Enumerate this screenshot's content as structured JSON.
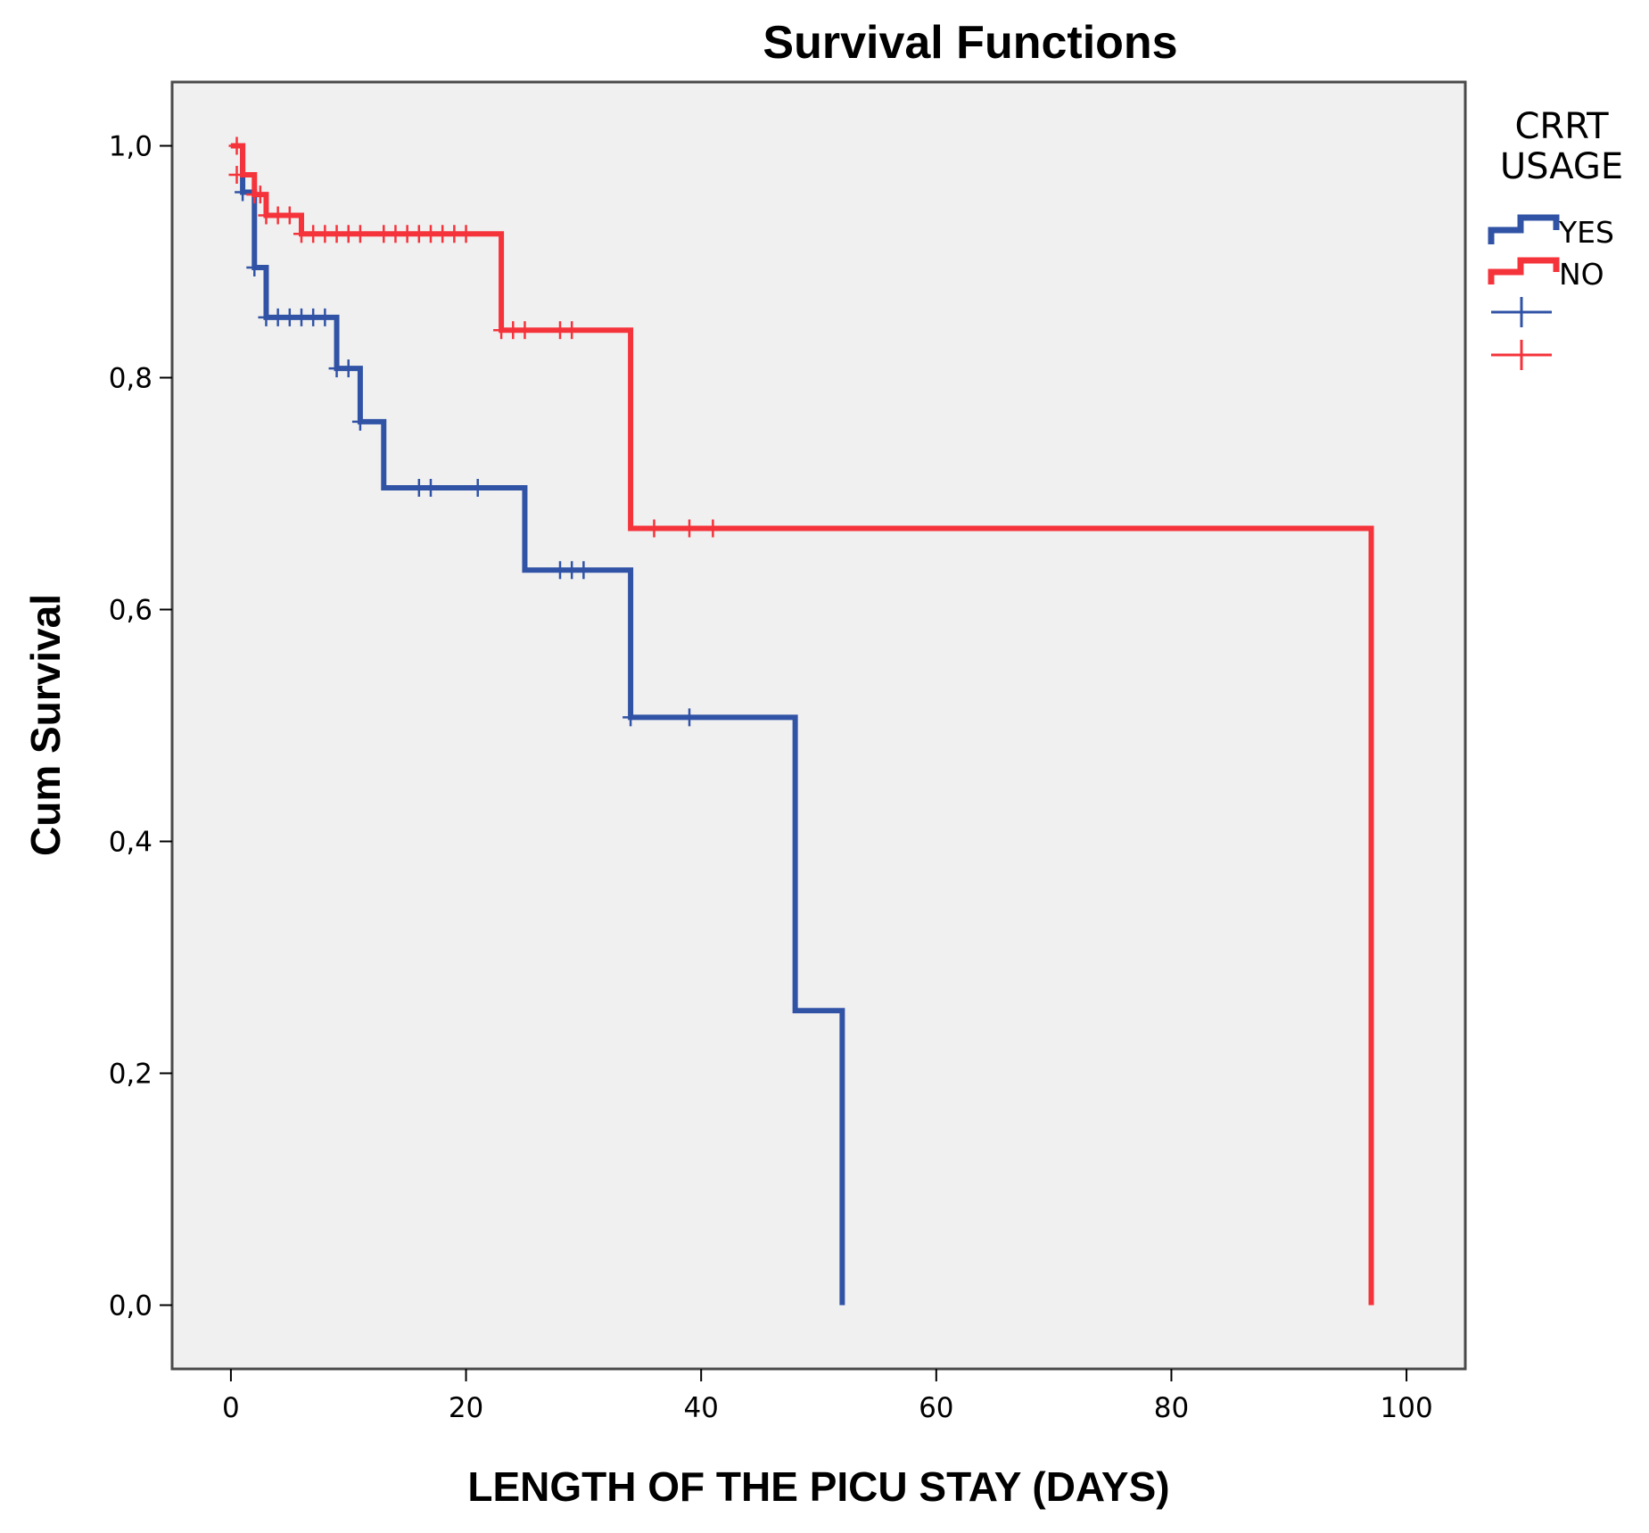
{
  "chart_data": {
    "type": "line",
    "subtype": "kaplan-meier-step",
    "title": "Survival Functions",
    "xlabel": "LENGTH OF THE PICU STAY (DAYS)",
    "ylabel": "Cum Survival",
    "xlim": [
      -5,
      105
    ],
    "ylim": [
      -0.055,
      1.055
    ],
    "xticks": [
      0,
      20,
      40,
      60,
      80,
      100
    ],
    "xtick_labels": [
      "0",
      "20",
      "40",
      "60",
      "80",
      "100"
    ],
    "yticks": [
      0.0,
      0.2,
      0.4,
      0.6,
      0.8,
      1.0
    ],
    "ytick_labels": [
      "0,0",
      "0,2",
      "0,4",
      "0,6",
      "0,8",
      "1,0"
    ],
    "grid": false,
    "legend": {
      "title_lines": [
        "CRRT",
        "USAGE"
      ],
      "position": "right",
      "entries": [
        "YES",
        "NO"
      ]
    },
    "series": [
      {
        "name": "YES",
        "color": "#3153a6",
        "steps": [
          [
            0,
            1.0
          ],
          [
            1,
            0.96
          ],
          [
            2,
            0.895
          ],
          [
            3,
            0.852
          ],
          [
            9,
            0.808
          ],
          [
            11,
            0.762
          ],
          [
            13,
            0.705
          ],
          [
            25,
            0.634
          ],
          [
            34,
            0.507
          ],
          [
            48,
            0.254
          ],
          [
            52,
            0.0
          ]
        ],
        "censored": [
          [
            1,
            0.96
          ],
          [
            2,
            0.895
          ],
          [
            3,
            0.852
          ],
          [
            4,
            0.852
          ],
          [
            5,
            0.852
          ],
          [
            6,
            0.852
          ],
          [
            7,
            0.852
          ],
          [
            8,
            0.852
          ],
          [
            9,
            0.808
          ],
          [
            10,
            0.808
          ],
          [
            11,
            0.762
          ],
          [
            16,
            0.705
          ],
          [
            17,
            0.705
          ],
          [
            21,
            0.705
          ],
          [
            28,
            0.634
          ],
          [
            29,
            0.634
          ],
          [
            30,
            0.634
          ],
          [
            34,
            0.507
          ],
          [
            39,
            0.507
          ]
        ]
      },
      {
        "name": "NO",
        "color": "#f5333b",
        "steps": [
          [
            0,
            1.0
          ],
          [
            1,
            0.975
          ],
          [
            2,
            0.958
          ],
          [
            3,
            0.94
          ],
          [
            6,
            0.924
          ],
          [
            23,
            0.841
          ],
          [
            34,
            0.67
          ],
          [
            97,
            0.0
          ]
        ],
        "censored": [
          [
            0.5,
            1.0
          ],
          [
            0.5,
            0.975
          ],
          [
            2,
            0.958
          ],
          [
            2.5,
            0.958
          ],
          [
            3,
            0.94
          ],
          [
            4,
            0.94
          ],
          [
            5,
            0.94
          ],
          [
            6,
            0.924
          ],
          [
            7,
            0.924
          ],
          [
            8,
            0.924
          ],
          [
            9,
            0.924
          ],
          [
            10,
            0.924
          ],
          [
            11,
            0.924
          ],
          [
            13,
            0.924
          ],
          [
            14,
            0.924
          ],
          [
            15,
            0.924
          ],
          [
            16,
            0.924
          ],
          [
            17,
            0.924
          ],
          [
            18,
            0.924
          ],
          [
            19,
            0.924
          ],
          [
            20,
            0.924
          ],
          [
            23,
            0.841
          ],
          [
            24,
            0.841
          ],
          [
            25,
            0.841
          ],
          [
            28,
            0.841
          ],
          [
            29,
            0.841
          ],
          [
            36,
            0.67
          ],
          [
            39,
            0.67
          ],
          [
            41,
            0.67
          ]
        ]
      }
    ]
  },
  "colors": {
    "plot_background": "#f0f0f0",
    "frame": "#4a4a4a"
  }
}
